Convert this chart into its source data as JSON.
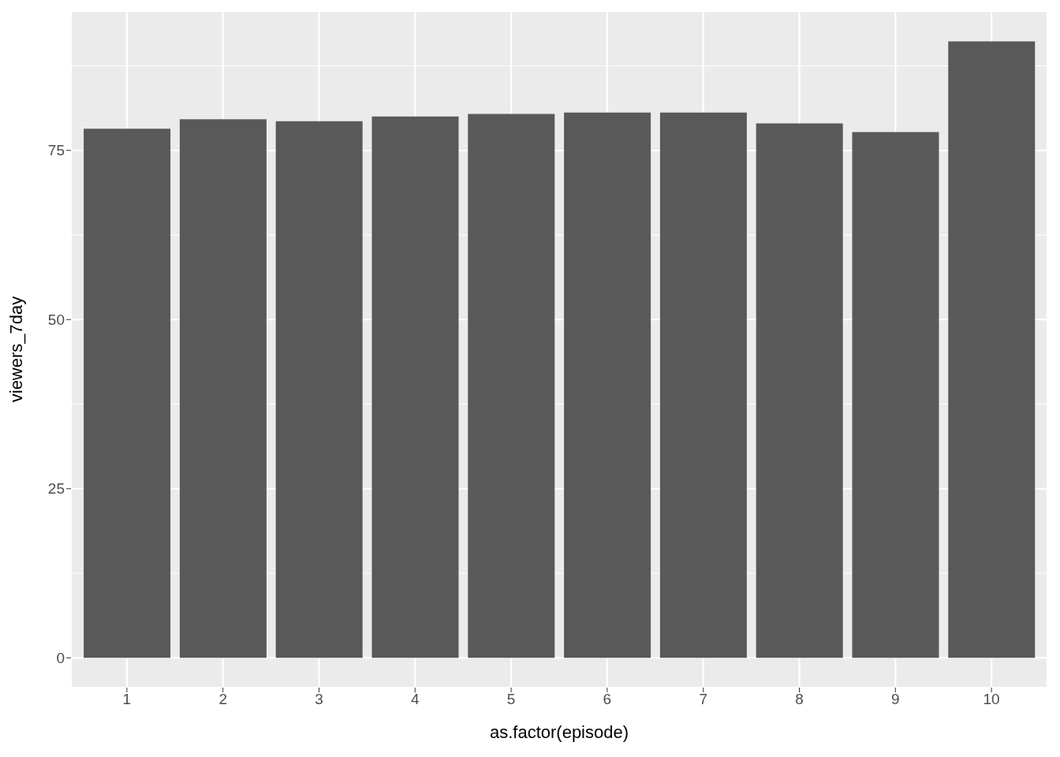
{
  "chart_data": {
    "type": "bar",
    "xlabel": "as.factor(episode)",
    "ylabel": "viewers_7day",
    "categories": [
      "1",
      "2",
      "3",
      "4",
      "5",
      "6",
      "7",
      "8",
      "9",
      "10"
    ],
    "values": [
      78.2,
      79.6,
      79.3,
      80.0,
      80.4,
      80.6,
      80.6,
      79.0,
      77.7,
      91.1
    ],
    "color": "#595959",
    "ylim": [
      -4.4,
      95.6
    ],
    "yticks": [
      0,
      25,
      50,
      75
    ],
    "grid": true
  }
}
